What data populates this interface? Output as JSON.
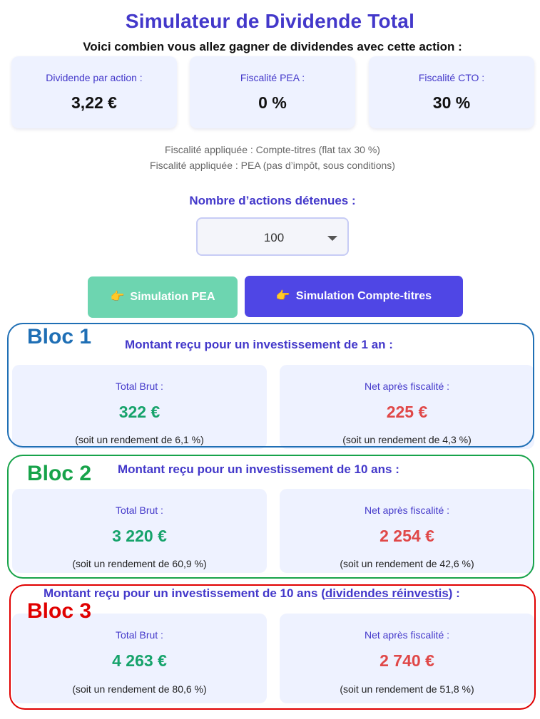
{
  "header": {
    "title": "Simulateur de Dividende Total",
    "subtitle": "Voici combien vous allez gagner de dividendes avec cette action :"
  },
  "stats": [
    {
      "label": "Dividende par action :",
      "value": "3,22 €"
    },
    {
      "label": "Fiscalité PEA :",
      "value": "0 %"
    },
    {
      "label": "Fiscalité CTO :",
      "value": "30 %"
    }
  ],
  "notes": [
    "Fiscalité appliquée : Compte-titres (flat tax 30 %)",
    "Fiscalité appliquée : PEA (pas d’impôt, sous conditions)"
  ],
  "shares": {
    "label": "Nombre d’actions détenues :",
    "value": "100"
  },
  "buttons": {
    "hand_icon": "👉",
    "pea": "Simulation PEA",
    "cto": "Simulation Compte-titres"
  },
  "colors": {
    "accent": "#4338ca",
    "positive": "#16a36b",
    "negative": "#e04848",
    "bloc1": "#1f6fb5",
    "bloc2": "#17a34a",
    "bloc3": "#e00000"
  },
  "blocs": [
    {
      "tag": "Bloc 1",
      "title": "Montant reçu pour un investissement de 1 an :",
      "gross_label": "Total Brut :",
      "gross": "322 €",
      "gross_yield": "(soit un rendement de 6,1 %)",
      "net_label": "Net après fiscalité :",
      "net": "225 €",
      "net_yield": "(soit un rendement de 4,3 %)"
    },
    {
      "tag": "Bloc 2",
      "title": "Montant reçu pour un investissement de 10 ans :",
      "gross_label": "Total Brut :",
      "gross": "3 220 €",
      "gross_yield": "(soit un rendement de 60,9 %)",
      "net_label": "Net après fiscalité :",
      "net": "2 254 €",
      "net_yield": "(soit un rendement de 42,6 %)"
    },
    {
      "tag": "Bloc 3",
      "title_pre": "Montant reçu pour un investissement de 10 ans (",
      "title_link": "dividendes réinvestis",
      "title_post": ") :",
      "gross_label": "Total Brut :",
      "gross": "4 263 €",
      "gross_yield": "(soit un rendement de 80,6 %)",
      "net_label": "Net après fiscalité :",
      "net": "2 740 €",
      "net_yield": "(soit un rendement de 51,8 %)"
    }
  ]
}
